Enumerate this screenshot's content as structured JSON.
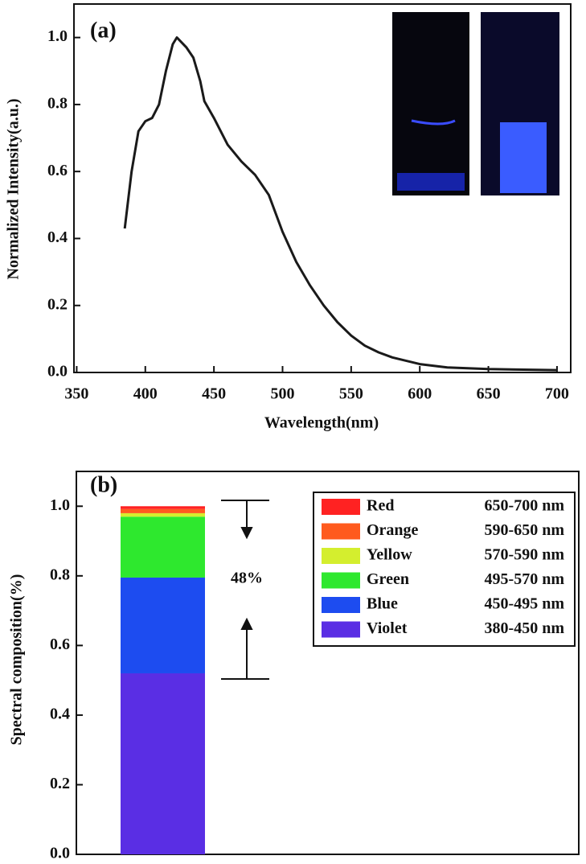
{
  "chart_data": [
    {
      "type": "line",
      "title": "(a)",
      "xlabel": "Wavelength(nm)",
      "ylabel": "Normalized Intensity(a.u.)",
      "x": [
        385,
        390,
        395,
        400,
        405,
        410,
        415,
        420,
        423,
        430,
        435,
        440,
        443,
        450,
        460,
        470,
        480,
        490,
        500,
        510,
        520,
        530,
        540,
        550,
        560,
        570,
        580,
        600,
        620,
        650,
        700
      ],
      "series": [
        {
          "color": "#1a1a1a",
          "values": [
            0.43,
            0.6,
            0.72,
            0.75,
            0.76,
            0.8,
            0.9,
            0.98,
            1.0,
            0.97,
            0.94,
            0.87,
            0.81,
            0.76,
            0.68,
            0.63,
            0.59,
            0.53,
            0.42,
            0.33,
            0.26,
            0.2,
            0.15,
            0.11,
            0.08,
            0.06,
            0.045,
            0.025,
            0.015,
            0.01,
            0.007
          ]
        }
      ],
      "xlim": [
        348,
        710
      ],
      "xticks": [
        350,
        400,
        450,
        500,
        550,
        600,
        650,
        700
      ],
      "ylim": [
        0,
        1.1
      ],
      "yticks": [
        {
          "value": 0,
          "label": "0.0"
        },
        0.2,
        0.4,
        0.6,
        0.8,
        {
          "value": 1,
          "label": "1.0"
        }
      ]
    },
    {
      "type": "stacked_bar",
      "title": "(b)",
      "ylabel": "Spectral composition(%)",
      "categories": [
        null
      ],
      "series": [
        {
          "name": "Violet",
          "range": "380-450 nm",
          "color": "#5a2ee4",
          "values": [
            0.52
          ]
        },
        {
          "name": "Blue",
          "range": "450-495 nm",
          "color": "#1d4cf0",
          "values": [
            0.275
          ]
        },
        {
          "name": "Green",
          "range": "495-570 nm",
          "color": "#2ee82e",
          "values": [
            0.175
          ]
        },
        {
          "name": "Yellow",
          "range": "570-590 nm",
          "color": "#d4ee2e",
          "values": [
            0.01
          ]
        },
        {
          "name": "Orange",
          "range": "590-650 nm",
          "color": "#ff5a1e",
          "values": [
            0.012
          ]
        },
        {
          "name": "Red",
          "range": "650-700 nm",
          "color": "#ff2222",
          "values": [
            0.008
          ]
        }
      ],
      "ylim": [
        0,
        1.1
      ],
      "yticks": [
        {
          "value": 0,
          "label": "0.0"
        },
        0.2,
        0.4,
        0.6,
        0.8,
        {
          "value": 1,
          "label": "1.0"
        }
      ],
      "legend": "upper right",
      "annotation": "48%"
    }
  ]
}
